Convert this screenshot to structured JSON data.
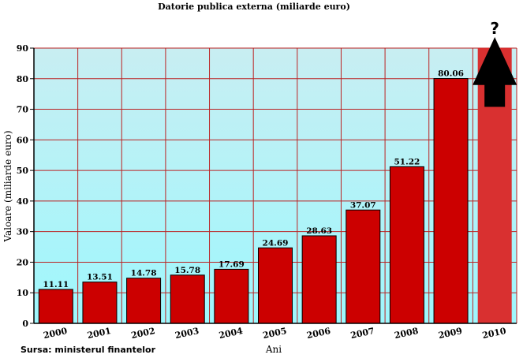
{
  "chart_data": {
    "type": "bar",
    "title": "Datorie publica externa (miliarde euro)",
    "xlabel": "Ani",
    "ylabel": "Valoare (miliarde euro)",
    "source": "Sursa: ministerul finantelor",
    "categories": [
      "2000",
      "2001",
      "2002",
      "2003",
      "2004",
      "2005",
      "2006",
      "2007",
      "2008",
      "2009",
      "2010"
    ],
    "values": [
      11.11,
      13.51,
      14.78,
      15.78,
      17.69,
      24.69,
      28.63,
      37.07,
      51.22,
      80.06,
      90
    ],
    "data_labels": [
      "11.11",
      "13.51",
      "14.78",
      "15.78",
      "17.69",
      "24.69",
      "28.63",
      "37.07",
      "51.22",
      "80.06",
      null
    ],
    "ylim": [
      0,
      90
    ],
    "yticks": [
      0,
      10,
      20,
      30,
      40,
      50,
      60,
      70,
      80,
      90
    ],
    "grid": true,
    "annotation": {
      "category": "2010",
      "text": "?",
      "shape": "up-arrow"
    },
    "colors": {
      "bar": "#cc0000",
      "bar_faded": "#d93030",
      "grid": "#bb2222",
      "plot_top": "#c8eef2",
      "plot_bottom": "#9ef7fd",
      "arrow": "#000000"
    }
  }
}
